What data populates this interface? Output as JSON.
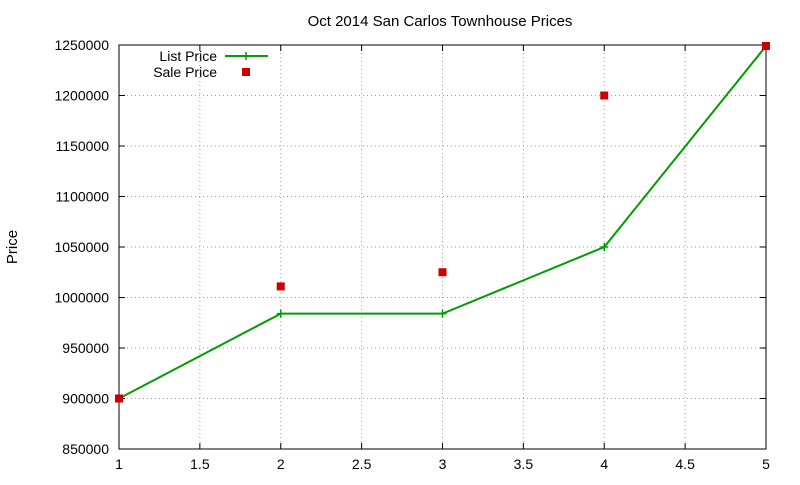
{
  "chart_data": {
    "type": "line",
    "title": "Oct 2014 San Carlos Townhouse Prices",
    "xlabel": "",
    "ylabel": "Price",
    "xlim": [
      1,
      5
    ],
    "ylim": [
      850000,
      1250000
    ],
    "xticks": [
      "1",
      "1.5",
      "2",
      "2.5",
      "3",
      "3.5",
      "4",
      "4.5",
      "5"
    ],
    "xtick_values": [
      1,
      1.5,
      2,
      2.5,
      3,
      3.5,
      4,
      4.5,
      5
    ],
    "yticks": [
      "850000",
      "900000",
      "950000",
      "1000000",
      "1050000",
      "1100000",
      "1150000",
      "1200000",
      "1250000"
    ],
    "ytick_values": [
      850000,
      900000,
      950000,
      1000000,
      1050000,
      1100000,
      1150000,
      1200000,
      1250000
    ],
    "grid": true,
    "legend_position": "top-left",
    "series": [
      {
        "name": "List Price",
        "style": "linespoints",
        "marker": "plus",
        "color": "#009e00",
        "x": [
          1,
          2,
          3,
          4,
          5
        ],
        "y": [
          900000,
          984000,
          984000,
          1050000,
          1249000
        ]
      },
      {
        "name": "Sale Price",
        "style": "points",
        "marker": "square",
        "color": "#cc0000",
        "x": [
          1,
          2,
          3,
          4,
          5
        ],
        "y": [
          900000,
          1011000,
          1025000,
          1200000,
          1249000
        ]
      }
    ]
  }
}
